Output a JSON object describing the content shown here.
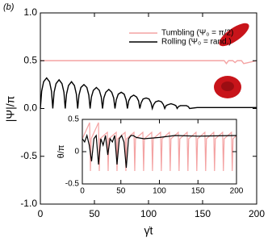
{
  "chart_data": [
    {
      "type": "line",
      "panel_label": "(b)",
      "xlabel": "γ̇t",
      "ylabel": "|Ψ|/π",
      "xlim": [
        0,
        200
      ],
      "xticks": [
        0,
        50,
        100,
        150,
        200
      ],
      "ylim": [
        -1,
        1
      ],
      "yticks": [
        {
          "value": -1,
          "label": "-1.0"
        },
        -0.5,
        {
          "value": 0,
          "label": "0.0"
        },
        0.5,
        {
          "value": 1,
          "label": "1.0"
        }
      ],
      "legend": "top-right",
      "series": [
        {
          "name": "Tumbling (Ψ₀ = π/2)",
          "color": "#f4a3a3",
          "x": [
            0,
            170,
            172,
            174,
            178,
            180,
            182,
            186,
            188,
            200
          ],
          "values": [
            0.5,
            0.5,
            0.47,
            0.5,
            0.5,
            0.48,
            0.5,
            0.5,
            0.47,
            0.5
          ]
        },
        {
          "name": "Rolling (Ψ₀ = rand.)",
          "color": "#000000",
          "x": [
            0,
            1.2,
            3,
            5.8,
            8.5,
            10.3,
            11.5,
            12.7,
            14.5,
            17.3,
            20,
            21.8,
            23,
            24.2,
            26,
            28.8,
            31.5,
            33.3,
            34.5,
            35.7,
            37.5,
            40.3,
            43,
            44.8,
            46,
            47.2,
            49,
            51.8,
            54.5,
            56.3,
            57.5,
            58.7,
            60.5,
            63.3,
            66,
            67.8,
            69,
            70.2,
            72,
            74.8,
            77.5,
            79.3,
            80.5,
            81.7,
            83.5,
            86.3,
            89,
            90.8,
            92,
            93.2,
            95,
            97.8,
            100.5,
            102.3,
            103.5,
            104.7,
            106.5,
            109.3,
            112,
            113.8,
            115,
            116.2,
            118,
            120.8,
            123.5,
            125.3,
            126.5,
            127.7,
            129.5,
            132.3,
            135,
            136.8,
            138,
            145,
            200
          ],
          "values": [
            0,
            0.18,
            0.28,
            0.32,
            0.28,
            0.18,
            0,
            0.17,
            0.26,
            0.3,
            0.26,
            0.17,
            0,
            0.15,
            0.24,
            0.28,
            0.24,
            0.15,
            0,
            0.14,
            0.22,
            0.25,
            0.22,
            0.14,
            0,
            0.12,
            0.19,
            0.22,
            0.19,
            0.12,
            0,
            0.11,
            0.17,
            0.2,
            0.17,
            0.11,
            0,
            0.09,
            0.15,
            0.17,
            0.15,
            0.09,
            0,
            0.08,
            0.12,
            0.14,
            0.12,
            0.08,
            0,
            0.06,
            0.1,
            0.11,
            0.1,
            0.06,
            0,
            0.04,
            0.07,
            0.08,
            0.07,
            0.04,
            0,
            0.03,
            0.04,
            0.05,
            0.04,
            0.03,
            0,
            0.02,
            0.03,
            0.03,
            0.03,
            0.02,
            0,
            0.01,
            0.01
          ]
        }
      ]
    },
    {
      "type": "line",
      "ylabel": "θ/π",
      "xlim": [
        0,
        200
      ],
      "xticks": [
        0,
        50,
        100,
        150,
        200
      ],
      "ylim": [
        -0.5,
        0.5
      ],
      "yticks": [
        -0.5,
        0,
        0.5
      ],
      "series": [
        {
          "color": "#f4a3a3",
          "x": [
            0,
            9.5,
            10.5,
            11.5,
            21,
            22,
            23,
            32.5,
            33.5,
            34.5,
            44,
            45,
            46,
            55.5,
            56.5,
            57.5,
            67,
            68,
            69,
            78.5,
            79.5,
            80.5,
            90,
            91,
            92,
            101.5,
            102.5,
            103.5,
            113,
            114,
            115,
            124.5,
            125.5,
            126.5,
            136,
            137,
            138,
            147.5,
            148.5,
            149.5,
            159,
            160,
            161,
            170.5,
            171.5,
            172.5,
            182,
            183,
            184,
            193.5,
            194.5,
            195.5,
            200
          ],
          "values": [
            0.2,
            0.45,
            -0.3,
            0.2,
            0.45,
            -0.3,
            0.2,
            0.3,
            -0.3,
            0.2,
            0.3,
            -0.3,
            0.2,
            0.3,
            -0.3,
            0.2,
            0.3,
            -0.3,
            0.2,
            0.3,
            -0.3,
            0.2,
            0.3,
            -0.3,
            0.2,
            0.3,
            -0.3,
            0.2,
            0.3,
            -0.3,
            0.2,
            0.3,
            -0.3,
            0.2,
            0.3,
            -0.3,
            0.2,
            0.3,
            -0.3,
            0.2,
            0.3,
            -0.3,
            0.2,
            0.3,
            -0.3,
            0.2,
            0.3,
            -0.3,
            0.2,
            0.3,
            -0.3,
            0.2,
            0.25
          ]
        },
        {
          "color": "#000000",
          "x": [
            0,
            3,
            6,
            9,
            12,
            15,
            18,
            21,
            24,
            27,
            30,
            33,
            36,
            39,
            42,
            45,
            48,
            51,
            54,
            57,
            60,
            63,
            66,
            70,
            80,
            100,
            120,
            150,
            200
          ],
          "values": [
            0.2,
            0.15,
            0.25,
            0.1,
            -0.15,
            0.2,
            0.25,
            -0.2,
            0.2,
            0.1,
            0.25,
            -0.05,
            0.2,
            0.15,
            0.25,
            -0.2,
            0.2,
            0.25,
            0.15,
            -0.25,
            0.2,
            0.25,
            0.25,
            0.22,
            0.2,
            0.22,
            0.25,
            0.24,
            0.25
          ]
        }
      ]
    }
  ]
}
